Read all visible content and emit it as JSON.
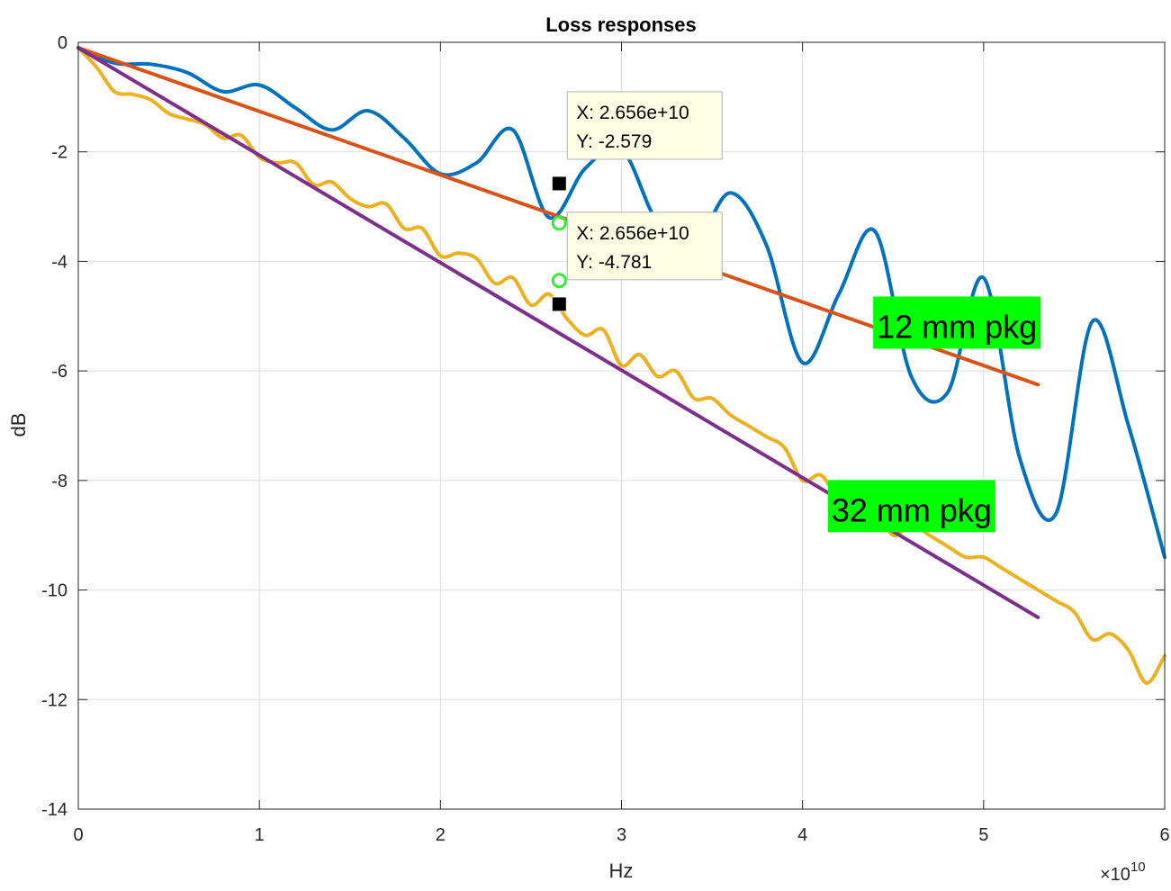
{
  "chart_data": {
    "type": "line",
    "title": "Loss responses",
    "xlabel": "Hz",
    "ylabel": "dB",
    "x_exponent_label": "×10",
    "x_exponent_power": "10",
    "xlim": [
      0,
      60000000000.0
    ],
    "ylim": [
      -14,
      0
    ],
    "x_ticks": [
      0,
      10000000000.0,
      20000000000.0,
      30000000000.0,
      40000000000.0,
      50000000000.0,
      60000000000.0
    ],
    "x_tick_labels": [
      "0",
      "1",
      "2",
      "3",
      "4",
      "5",
      "6"
    ],
    "y_ticks": [
      0,
      -2,
      -4,
      -6,
      -8,
      -10,
      -12,
      -14
    ],
    "y_tick_labels": [
      "0",
      "-2",
      "-4",
      "-6",
      "-8",
      "-10",
      "-12",
      "-14"
    ],
    "grid": true,
    "series": [
      {
        "color": "#0072BD",
        "x": [
          0,
          2000000000.0,
          4000000000.0,
          6000000000.0,
          8000000000.0,
          10000000000.0,
          12000000000.0,
          14000000000.0,
          16000000000.0,
          18000000000.0,
          20000000000.0,
          22000000000.0,
          24000000000.0,
          26000000000.0,
          28000000000.0,
          30000000000.0,
          32000000000.0,
          34000000000.0,
          36000000000.0,
          38000000000.0,
          40000000000.0,
          42000000000.0,
          44000000000.0,
          46000000000.0,
          48000000000.0,
          50000000000.0,
          52000000000.0,
          54000000000.0,
          56000000000.0,
          58000000000.0,
          60000000000.0
        ],
        "y": [
          -0.1,
          -0.38,
          -0.4,
          -0.55,
          -0.9,
          -0.78,
          -1.2,
          -1.6,
          -1.25,
          -1.75,
          -2.4,
          -2.2,
          -1.6,
          -3.2,
          -2.3,
          -1.95,
          -3.3,
          -3.7,
          -2.75,
          -3.7,
          -5.85,
          -4.6,
          -3.45,
          -6.1,
          -6.4,
          -4.3,
          -7.6,
          -8.6,
          -5.1,
          -7.0,
          -9.4
        ]
      },
      {
        "color": "#EDB120",
        "x": [
          0,
          1000000000.0,
          2000000000.0,
          3000000000.0,
          4000000000.0,
          5000000000.0,
          6000000000.0,
          7000000000.0,
          8000000000.0,
          9000000000.0,
          10000000000.0,
          11000000000.0,
          12000000000.0,
          13000000000.0,
          14000000000.0,
          15000000000.0,
          16000000000.0,
          17000000000.0,
          18000000000.0,
          19000000000.0,
          20000000000.0,
          21000000000.0,
          22000000000.0,
          23000000000.0,
          24000000000.0,
          25000000000.0,
          26000000000.0,
          27000000000.0,
          28000000000.0,
          29000000000.0,
          30000000000.0,
          31000000000.0,
          32000000000.0,
          33000000000.0,
          34000000000.0,
          35000000000.0,
          36000000000.0,
          37000000000.0,
          38000000000.0,
          39000000000.0,
          40000000000.0,
          41000000000.0,
          42000000000.0,
          43000000000.0,
          44000000000.0,
          45000000000.0,
          46000000000.0,
          47000000000.0,
          48000000000.0,
          49000000000.0,
          50000000000.0,
          51000000000.0,
          52000000000.0,
          53000000000.0,
          54000000000.0,
          55000000000.0,
          56000000000.0,
          57000000000.0,
          58000000000.0,
          59000000000.0,
          60000000000.0
        ],
        "y": [
          -0.1,
          -0.45,
          -0.9,
          -0.95,
          -1.05,
          -1.3,
          -1.4,
          -1.5,
          -1.75,
          -1.7,
          -2.1,
          -2.2,
          -2.2,
          -2.6,
          -2.55,
          -2.85,
          -3.0,
          -2.95,
          -3.4,
          -3.4,
          -3.9,
          -3.85,
          -3.95,
          -4.4,
          -4.3,
          -4.8,
          -4.6,
          -5.05,
          -5.35,
          -5.25,
          -5.9,
          -5.7,
          -6.1,
          -6.0,
          -6.5,
          -6.5,
          -6.8,
          -7.0,
          -7.2,
          -7.4,
          -8.0,
          -7.9,
          -8.3,
          -8.2,
          -8.5,
          -9.0,
          -8.8,
          -9.0,
          -9.2,
          -9.4,
          -9.4,
          -9.6,
          -9.8,
          -10.0,
          -10.2,
          -10.4,
          -10.9,
          -10.8,
          -11.1,
          -11.7,
          -11.2
        ]
      },
      {
        "color": "#D95319",
        "x": [
          0,
          53000000000.0
        ],
        "y": [
          -0.1,
          -6.25
        ]
      },
      {
        "color": "#7E2F8E",
        "x": [
          0,
          53000000000.0
        ],
        "y": [
          -0.1,
          -10.5
        ]
      }
    ],
    "datatips": [
      {
        "x_label": "X: 2.656e+10",
        "y_label": "Y: -2.579",
        "x": 26560000000.0,
        "y": -2.579,
        "ring_y": -3.3,
        "box_x": 27500000000.0,
        "box_y": -1.1
      },
      {
        "x_label": "X: 2.656e+10",
        "y_label": "Y: -4.781",
        "x": 26560000000.0,
        "y": -4.781,
        "ring_y": -4.35,
        "box_x": 27500000000.0,
        "box_y": -3.3
      }
    ],
    "annotations": [
      {
        "text": "12 mm pkg",
        "x": 44000000000.0,
        "y": -5.2
      },
      {
        "text": "32 mm pkg",
        "x": 41500000000.0,
        "y": -8.55
      }
    ],
    "annotation_color": "#00FF00"
  }
}
